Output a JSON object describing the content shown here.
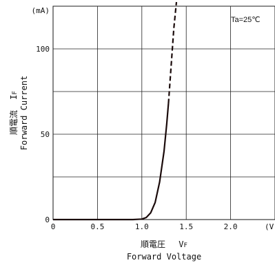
{
  "chart_data": {
    "type": "line",
    "condition": "Ta=25℃",
    "x_axis": {
      "label_jp": "順電圧",
      "symbol": "V",
      "symbol_sub": "F",
      "label_en": "Forward Voltage",
      "unit": "(V)",
      "range": [
        0,
        2.5
      ],
      "ticks": [
        0,
        0.5,
        1.0,
        1.5,
        2.0
      ],
      "tick_labels": [
        "0",
        "0.5",
        "1.0",
        "1.5",
        "2.0"
      ]
    },
    "y_axis": {
      "label_jp": "順電流",
      "symbol": "I",
      "symbol_sub": "F",
      "label_en": "Forward Current",
      "unit": "(mA)",
      "range": [
        0,
        125
      ],
      "ticks": [
        0,
        50,
        100
      ],
      "tick_labels": [
        "0",
        "50",
        "100"
      ],
      "gridlines": [
        25,
        50,
        75,
        100,
        125
      ]
    },
    "vertical_gridlines": [
      0.5,
      1.0,
      1.5,
      2.0
    ],
    "series": [
      {
        "style": "solid",
        "points": [
          [
            0,
            0
          ],
          [
            0.9,
            0
          ],
          [
            1.0,
            0.3
          ],
          [
            1.05,
            1.2
          ],
          [
            1.1,
            4
          ],
          [
            1.15,
            10
          ],
          [
            1.2,
            22
          ],
          [
            1.25,
            40
          ],
          [
            1.28,
            56
          ],
          [
            1.3,
            68
          ]
        ]
      },
      {
        "style": "dashed",
        "points": [
          [
            1.3,
            68
          ],
          [
            1.33,
            90
          ],
          [
            1.36,
            112
          ],
          [
            1.39,
            128
          ]
        ]
      }
    ]
  }
}
